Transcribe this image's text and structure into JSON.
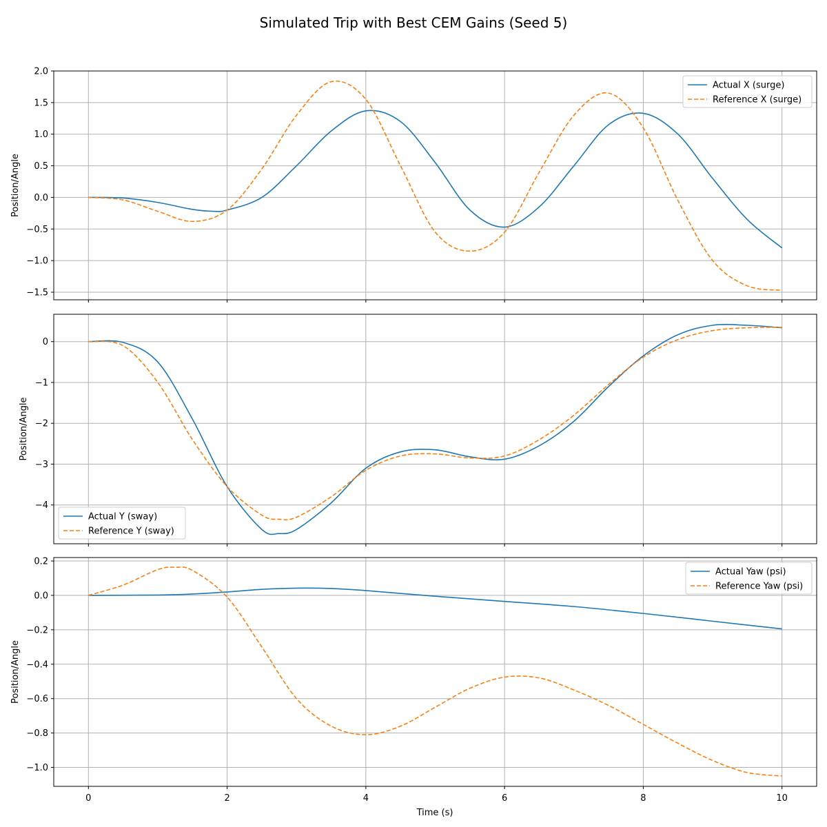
{
  "chart_data": {
    "type": "line",
    "title": "Simulated Trip with Best CEM Gains (Seed 5)",
    "xlabel": "Time (s)",
    "xlim": [
      -0.5,
      10.5
    ],
    "xticks": [
      0,
      2,
      4,
      6,
      8,
      10
    ],
    "xtick_labels": [
      "0",
      "2",
      "4",
      "6",
      "8",
      "10"
    ],
    "grid": true,
    "colors": {
      "actual": "#1f77b4",
      "reference": "#ff7f0e"
    },
    "panels": [
      {
        "ylabel": "Position/Angle",
        "ylim": [
          -1.62,
          2.0
        ],
        "yticks": [
          -1.5,
          -1.0,
          -0.5,
          0.0,
          0.5,
          1.0,
          1.5,
          2.0
        ],
        "ytick_labels": [
          "−1.5",
          "−1.0",
          "−0.5",
          "0.0",
          "0.5",
          "1.0",
          "1.5",
          "2.0"
        ],
        "legend_position": "upper-right",
        "series": [
          {
            "name": "Actual X (surge)",
            "style": "solid",
            "x": [
              0,
              0.5,
              1.0,
              1.5,
              1.8,
              2.0,
              2.5,
              3.0,
              3.5,
              4.0,
              4.5,
              5.0,
              5.5,
              6.0,
              6.5,
              7.0,
              7.5,
              8.0,
              8.5,
              9.0,
              9.5,
              10.0
            ],
            "y": [
              0.0,
              -0.01,
              -0.08,
              -0.19,
              -0.22,
              -0.2,
              0.0,
              0.5,
              1.05,
              1.37,
              1.2,
              0.55,
              -0.2,
              -0.47,
              -0.15,
              0.5,
              1.15,
              1.33,
              1.0,
              0.3,
              -0.35,
              -0.8
            ]
          },
          {
            "name": "Reference X (surge)",
            "style": "dashed",
            "x": [
              0,
              0.5,
              1.0,
              1.5,
              2.0,
              2.5,
              3.0,
              3.5,
              4.0,
              4.5,
              5.0,
              5.5,
              6.0,
              6.5,
              7.0,
              7.5,
              8.0,
              8.5,
              9.0,
              9.5,
              10.0
            ],
            "y": [
              0.0,
              -0.04,
              -0.22,
              -0.38,
              -0.2,
              0.45,
              1.3,
              1.83,
              1.55,
              0.5,
              -0.55,
              -0.85,
              -0.55,
              0.4,
              1.3,
              1.65,
              1.1,
              -0.05,
              -1.0,
              -1.4,
              -1.47
            ]
          }
        ]
      },
      {
        "ylabel": "Position/Angle",
        "ylim": [
          -4.95,
          0.67
        ],
        "yticks": [
          -4,
          -3,
          -2,
          -1,
          0
        ],
        "ytick_labels": [
          "−4",
          "−3",
          "−2",
          "−1",
          "0"
        ],
        "legend_position": "lower-left",
        "series": [
          {
            "name": "Actual Y (sway)",
            "style": "solid",
            "x": [
              0,
              0.5,
              1.0,
              1.5,
              2.0,
              2.5,
              2.75,
              3.0,
              3.5,
              4.0,
              4.5,
              5.0,
              5.5,
              6.0,
              6.5,
              7.0,
              7.5,
              8.0,
              8.5,
              9.0,
              9.5,
              10.0
            ],
            "y": [
              0.0,
              -0.02,
              -0.5,
              -1.9,
              -3.55,
              -4.6,
              -4.7,
              -4.6,
              -3.95,
              -3.1,
              -2.7,
              -2.65,
              -2.82,
              -2.88,
              -2.55,
              -1.95,
              -1.1,
              -0.35,
              0.17,
              0.4,
              0.4,
              0.34
            ]
          },
          {
            "name": "Reference Y (sway)",
            "style": "dashed",
            "x": [
              0,
              0.5,
              1.0,
              1.5,
              2.0,
              2.5,
              2.75,
              3.0,
              3.5,
              4.0,
              4.5,
              5.0,
              5.5,
              6.0,
              6.5,
              7.0,
              7.5,
              8.0,
              8.5,
              9.0,
              9.5,
              10.0
            ],
            "y": [
              0.0,
              -0.1,
              -1.0,
              -2.4,
              -3.55,
              -4.25,
              -4.35,
              -4.3,
              -3.8,
              -3.15,
              -2.8,
              -2.75,
              -2.85,
              -2.8,
              -2.4,
              -1.8,
              -1.05,
              -0.38,
              0.05,
              0.27,
              0.34,
              0.35
            ]
          }
        ]
      },
      {
        "ylabel": "Position/Angle",
        "ylim": [
          -1.11,
          0.22
        ],
        "yticks": [
          -1.0,
          -0.8,
          -0.6,
          -0.4,
          -0.2,
          0.0,
          0.2
        ],
        "ytick_labels": [
          "−1.0",
          "−0.8",
          "−0.6",
          "−0.4",
          "−0.2",
          "0.0",
          "0.2"
        ],
        "legend_position": "upper-right",
        "series": [
          {
            "name": "Actual Yaw (psi)",
            "style": "solid",
            "x": [
              0,
              1.0,
              1.5,
              2.0,
              2.5,
              3.0,
              3.5,
              4.0,
              5.0,
              6.0,
              7.0,
              8.0,
              9.0,
              10.0
            ],
            "y": [
              0.0,
              0.002,
              0.008,
              0.02,
              0.035,
              0.042,
              0.04,
              0.028,
              -0.005,
              -0.035,
              -0.065,
              -0.105,
              -0.15,
              -0.195
            ]
          },
          {
            "name": "Reference Yaw (psi)",
            "style": "dashed",
            "x": [
              0,
              0.5,
              1.0,
              1.25,
              1.5,
              2.0,
              2.5,
              3.0,
              3.5,
              4.0,
              4.5,
              5.0,
              5.5,
              6.0,
              6.5,
              7.0,
              7.5,
              8.0,
              8.5,
              9.0,
              9.5,
              10.0
            ],
            "y": [
              0.0,
              0.06,
              0.15,
              0.163,
              0.145,
              -0.01,
              -0.3,
              -0.6,
              -0.76,
              -0.81,
              -0.76,
              -0.65,
              -0.54,
              -0.475,
              -0.48,
              -0.55,
              -0.64,
              -0.75,
              -0.86,
              -0.96,
              -1.03,
              -1.05
            ]
          }
        ]
      }
    ]
  }
}
